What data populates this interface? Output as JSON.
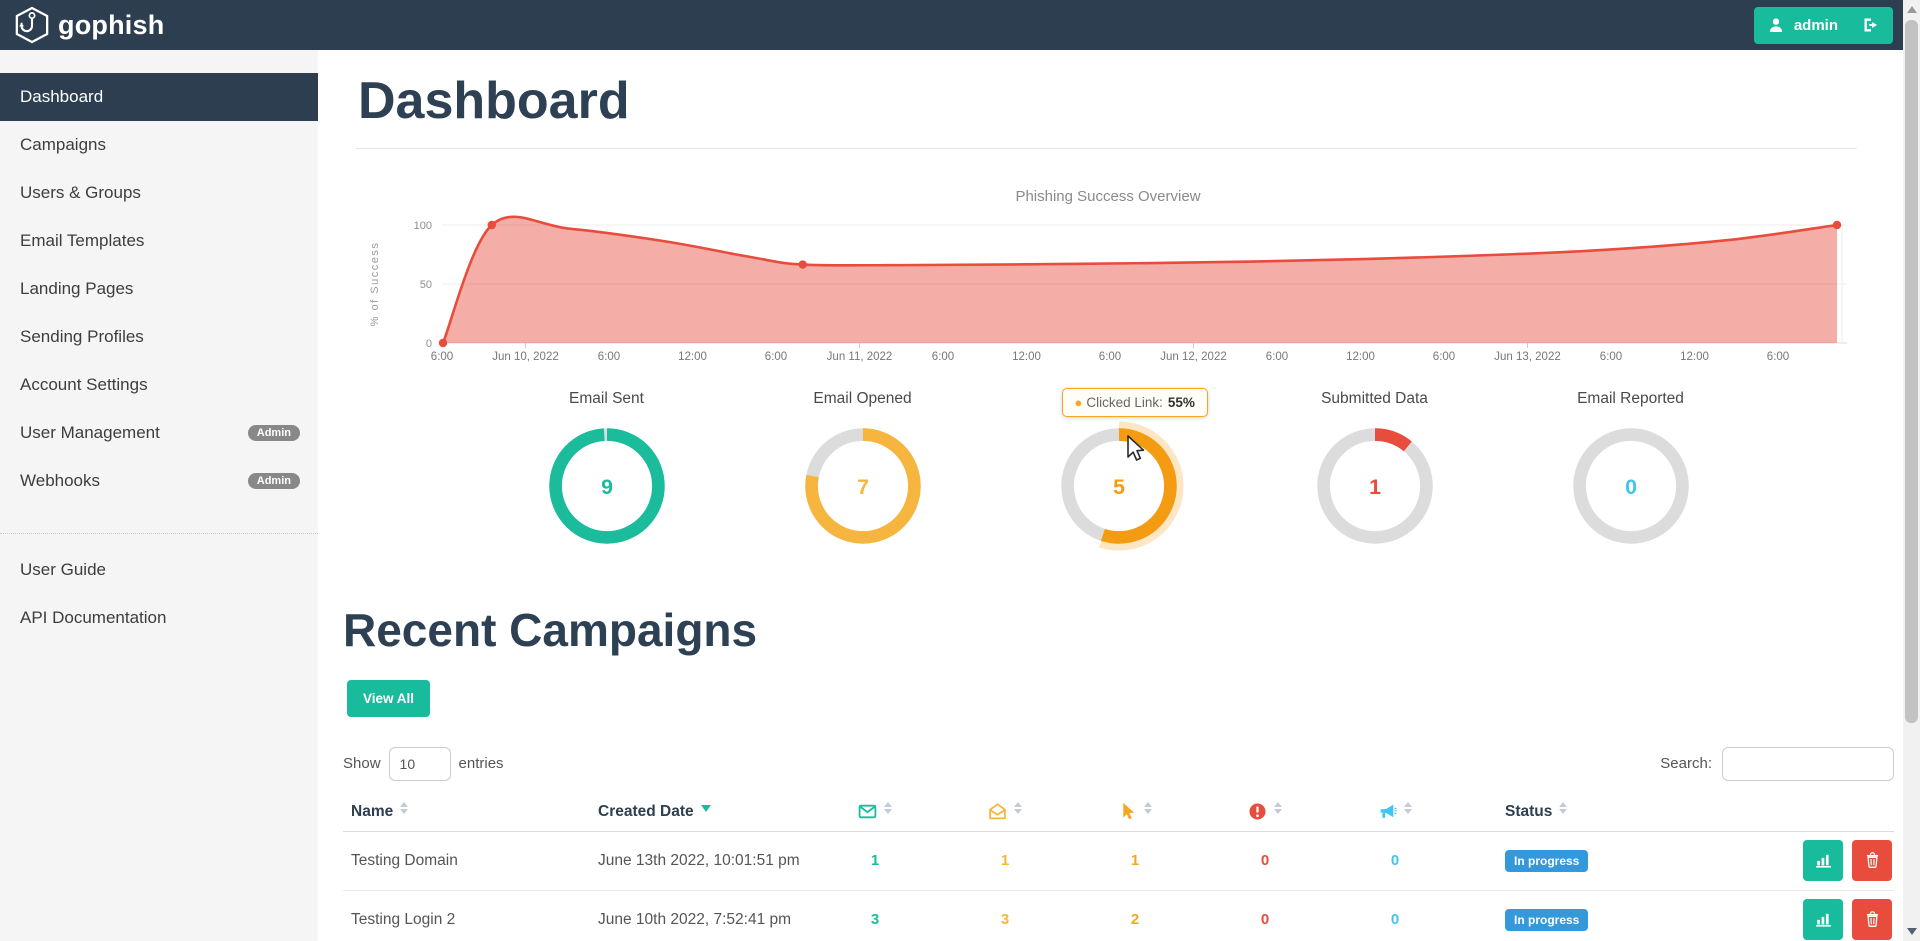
{
  "navbar": {
    "brand": "gophish",
    "user": {
      "label": "admin"
    }
  },
  "sidebar": {
    "items": [
      {
        "label": "Dashboard",
        "active": true
      },
      {
        "label": "Campaigns"
      },
      {
        "label": "Users & Groups"
      },
      {
        "label": "Email Templates"
      },
      {
        "label": "Landing Pages"
      },
      {
        "label": "Sending Profiles"
      },
      {
        "label": "Account Settings"
      },
      {
        "label": "User Management",
        "badge": "Admin"
      },
      {
        "label": "Webhooks",
        "badge": "Admin"
      }
    ],
    "footer_items": [
      {
        "label": "User Guide"
      },
      {
        "label": "API Documentation"
      }
    ]
  },
  "page": {
    "title": "Dashboard"
  },
  "chart_data": {
    "type": "area",
    "title": "Phishing Success Overview",
    "ylabel": "% of Success",
    "ylim": [
      0,
      100
    ],
    "yticks": [
      0,
      50,
      100
    ],
    "xticks": [
      "6:00",
      "Jun 10, 2022",
      "6:00",
      "12:00",
      "6:00",
      "Jun 11, 2022",
      "6:00",
      "12:00",
      "6:00",
      "Jun 12, 2022",
      "6:00",
      "12:00",
      "6:00",
      "Jun 13, 2022",
      "6:00",
      "12:00",
      "6:00"
    ],
    "grid": true,
    "legend": "none",
    "series": [
      {
        "name": "% of Success",
        "color": "#e74c3c",
        "fill": "rgba(231,76,60,0.45)",
        "markers": [
          {
            "x": "Jun 9, 2022 ~6:00 pm",
            "y": 0
          },
          {
            "x": "Jun 9, 2022 ~10:00 pm",
            "y": 100
          },
          {
            "x": "Jun 10, 2022 ~8:00 pm",
            "y": 66
          },
          {
            "x": "Jun 13, 2022 ~10:00 pm",
            "y": 100
          }
        ],
        "curve": [
          [
            0,
            0
          ],
          [
            0.035,
            100
          ],
          [
            0.09,
            97
          ],
          [
            0.16,
            86
          ],
          [
            0.22,
            73
          ],
          [
            0.258,
            66.5
          ],
          [
            0.33,
            66
          ],
          [
            0.45,
            67
          ],
          [
            0.58,
            69
          ],
          [
            0.7,
            72.5
          ],
          [
            0.82,
            78
          ],
          [
            0.92,
            87
          ],
          [
            1,
            100
          ]
        ],
        "marker_curve_indices": [
          0,
          1,
          5,
          12
        ]
      }
    ]
  },
  "stats": {
    "items": [
      {
        "title": "Email Sent",
        "value": "9",
        "percent": 100,
        "color": "#1abc9c"
      },
      {
        "title": "Email Opened",
        "value": "7",
        "percent": 78,
        "color": "#f6b53e"
      },
      {
        "title": "Clicked Link",
        "value": "5",
        "percent": 55,
        "color": "#f39c12",
        "hovered": true
      },
      {
        "title": "Submitted Data",
        "value": "1",
        "percent": 11,
        "color": "#e74c3c"
      },
      {
        "title": "Email Reported",
        "value": "0",
        "percent": 0,
        "color": "#41c6f0"
      }
    ],
    "tooltip": {
      "dot": "●",
      "label": "Clicked Link:",
      "value": "55%"
    }
  },
  "recent": {
    "title": "Recent Campaigns",
    "view_all": "View All"
  },
  "table_controls": {
    "show": "Show",
    "page_size": "10",
    "entries": "entries",
    "search": "Search:"
  },
  "table": {
    "columns": [
      {
        "type": "text",
        "label": "Name",
        "sort": "both"
      },
      {
        "type": "text",
        "label": "Created Date",
        "sort": "desc"
      },
      {
        "type": "icon",
        "icon": "envelope-icon",
        "color": "#1abc9c",
        "meaning": "emails sent",
        "sort": "both"
      },
      {
        "type": "icon",
        "icon": "envelope-open-icon",
        "color": "#f6b53e",
        "meaning": "emails opened",
        "sort": "both"
      },
      {
        "type": "icon",
        "icon": "cursor-icon",
        "color": "#f5a623",
        "meaning": "links clicked",
        "sort": "both"
      },
      {
        "type": "icon",
        "icon": "exclamation-circle-icon",
        "color": "#e74c3c",
        "meaning": "data submitted",
        "sort": "both"
      },
      {
        "type": "icon",
        "icon": "megaphone-icon",
        "color": "#41c6f0",
        "meaning": "emails reported",
        "sort": "both"
      },
      {
        "type": "text",
        "label": "Status",
        "sort": "both"
      },
      {
        "type": "actions"
      }
    ],
    "count_colors": [
      "#1abc9c",
      "#f6b53e",
      "#f5a623",
      "#e74c3c",
      "#41c6f0"
    ],
    "rows": [
      {
        "name": "Testing Domain",
        "created": "June 13th 2022, 10:01:51 pm",
        "counts": [
          "1",
          "1",
          "1",
          "0",
          "0"
        ],
        "status": "In progress"
      },
      {
        "name": "Testing Login 2",
        "created": "June 10th 2022, 7:52:41 pm",
        "counts": [
          "3",
          "3",
          "2",
          "0",
          "0"
        ],
        "status": "In progress"
      }
    ]
  },
  "colors": {
    "navbar": "#2c3e50",
    "accent_green": "#18bc9c",
    "status_blue": "#3498db",
    "danger_red": "#e74c3c",
    "chart_red": "#e74c3c",
    "donut_gray": "#dcdcdc"
  }
}
